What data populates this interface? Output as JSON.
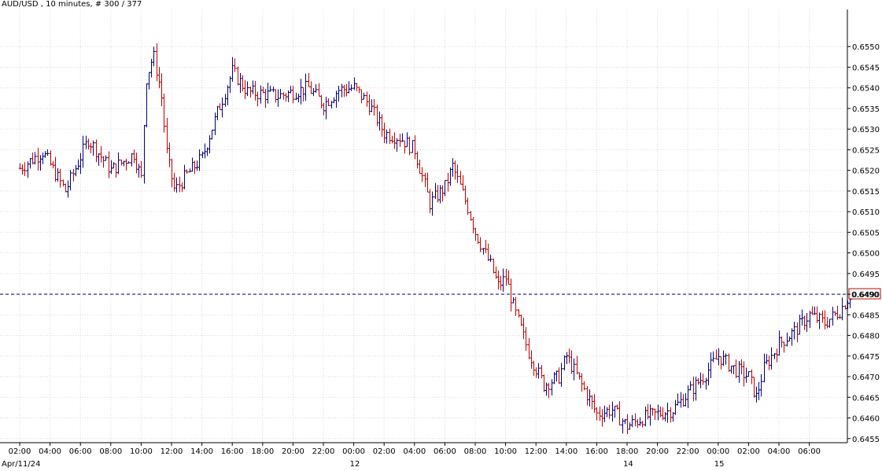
{
  "header": {
    "title": "AUD/USD , 10 minutes, # 300 / 377"
  },
  "chart_data": {
    "type": "ohlc",
    "symbol": "AUD/USD",
    "timeframe": "10 minutes",
    "ylim": [
      0.6454,
      0.6559
    ],
    "y_ticks": [
      "0.6550",
      "0.6545",
      "0.6540",
      "0.6535",
      "0.6530",
      "0.6525",
      "0.6520",
      "0.6515",
      "0.6510",
      "0.6505",
      "0.6500",
      "0.6495",
      "0.6490",
      "0.6485",
      "0.6480",
      "0.6475",
      "0.6470",
      "0.6465",
      "0.6460",
      "0.6455"
    ],
    "x_ticks": [
      "02:00",
      "04:00",
      "06:00",
      "08:00",
      "10:00",
      "12:00",
      "14:00",
      "16:00",
      "18:00",
      "20:00",
      "22:00",
      "00:00",
      "02:00",
      "04:00",
      "06:00",
      "08:00",
      "10:00",
      "12:00",
      "14:00",
      "16:00",
      "18:00",
      "20:00",
      "22:00",
      "00:00",
      "02:00",
      "04:00",
      "06:00"
    ],
    "date_labels": [
      {
        "text": "Apr/11/24",
        "tick_index": 0
      },
      {
        "text": "12",
        "tick_index": 11
      },
      {
        "text": "14",
        "tick_index": 20
      },
      {
        "text": "15",
        "tick_index": 23
      }
    ],
    "current_price": "0.6490",
    "grid": true,
    "colors": {
      "up": "#00007a",
      "down": "#c00000",
      "grid": "#d8d8d8",
      "price_line": "#00007a",
      "axis": "#000000"
    },
    "key_prices": [
      {
        "time_hours": 0.0,
        "price": 0.65205
      },
      {
        "time_hours": 1.5,
        "price": 0.65245
      },
      {
        "time_hours": 3.0,
        "price": 0.6515
      },
      {
        "time_hours": 4.5,
        "price": 0.65275
      },
      {
        "time_hours": 6.0,
        "price": 0.652
      },
      {
        "time_hours": 7.5,
        "price": 0.6524
      },
      {
        "time_hours": 8.0,
        "price": 0.6518
      },
      {
        "time_hours": 8.3,
        "price": 0.6542
      },
      {
        "time_hours": 8.8,
        "price": 0.6548
      },
      {
        "time_hours": 9.3,
        "price": 0.6539
      },
      {
        "time_hours": 9.7,
        "price": 0.6523
      },
      {
        "time_hours": 10.2,
        "price": 0.6515
      },
      {
        "time_hours": 11.0,
        "price": 0.6519
      },
      {
        "time_hours": 12.0,
        "price": 0.6523
      },
      {
        "time_hours": 13.0,
        "price": 0.6534
      },
      {
        "time_hours": 14.0,
        "price": 0.6544
      },
      {
        "time_hours": 15.0,
        "price": 0.6539
      },
      {
        "time_hours": 17.0,
        "price": 0.6538
      },
      {
        "time_hours": 19.0,
        "price": 0.654
      },
      {
        "time_hours": 20.0,
        "price": 0.6536
      },
      {
        "time_hours": 21.0,
        "price": 0.65395
      },
      {
        "time_hours": 22.0,
        "price": 0.654
      },
      {
        "time_hours": 23.0,
        "price": 0.6536
      },
      {
        "time_hours": 24.0,
        "price": 0.6529
      },
      {
        "time_hours": 25.0,
        "price": 0.6528
      },
      {
        "time_hours": 26.0,
        "price": 0.6525
      },
      {
        "time_hours": 27.0,
        "price": 0.6512
      },
      {
        "time_hours": 28.0,
        "price": 0.6516
      },
      {
        "time_hours": 28.5,
        "price": 0.6521
      },
      {
        "time_hours": 29.5,
        "price": 0.6511
      },
      {
        "time_hours": 30.0,
        "price": 0.6505
      },
      {
        "time_hours": 31.0,
        "price": 0.6497
      },
      {
        "time_hours": 31.5,
        "price": 0.6492
      },
      {
        "time_hours": 32.0,
        "price": 0.6494
      },
      {
        "time_hours": 32.5,
        "price": 0.6487
      },
      {
        "time_hours": 33.5,
        "price": 0.6476
      },
      {
        "time_hours": 34.5,
        "price": 0.6468
      },
      {
        "time_hours": 35.5,
        "price": 0.647
      },
      {
        "time_hours": 36.0,
        "price": 0.6475
      },
      {
        "time_hours": 37.0,
        "price": 0.6468
      },
      {
        "time_hours": 38.0,
        "price": 0.6461
      },
      {
        "time_hours": 39.0,
        "price": 0.6462
      },
      {
        "time_hours": 40.0,
        "price": 0.6458
      },
      {
        "time_hours": 41.0,
        "price": 0.646
      },
      {
        "time_hours": 42.0,
        "price": 0.6461
      },
      {
        "time_hours": 43.0,
        "price": 0.6462
      },
      {
        "time_hours": 44.0,
        "price": 0.6466
      },
      {
        "time_hours": 45.0,
        "price": 0.647
      },
      {
        "time_hours": 46.0,
        "price": 0.6475
      },
      {
        "time_hours": 47.0,
        "price": 0.6472
      },
      {
        "time_hours": 48.0,
        "price": 0.647
      },
      {
        "time_hours": 48.5,
        "price": 0.6465
      },
      {
        "time_hours": 49.0,
        "price": 0.6472
      },
      {
        "time_hours": 50.0,
        "price": 0.6478
      },
      {
        "time_hours": 51.0,
        "price": 0.6481
      },
      {
        "time_hours": 52.0,
        "price": 0.6485
      },
      {
        "time_hours": 53.0,
        "price": 0.6483
      },
      {
        "time_hours": 54.0,
        "price": 0.6486
      },
      {
        "time_hours": 54.7,
        "price": 0.649
      }
    ]
  }
}
